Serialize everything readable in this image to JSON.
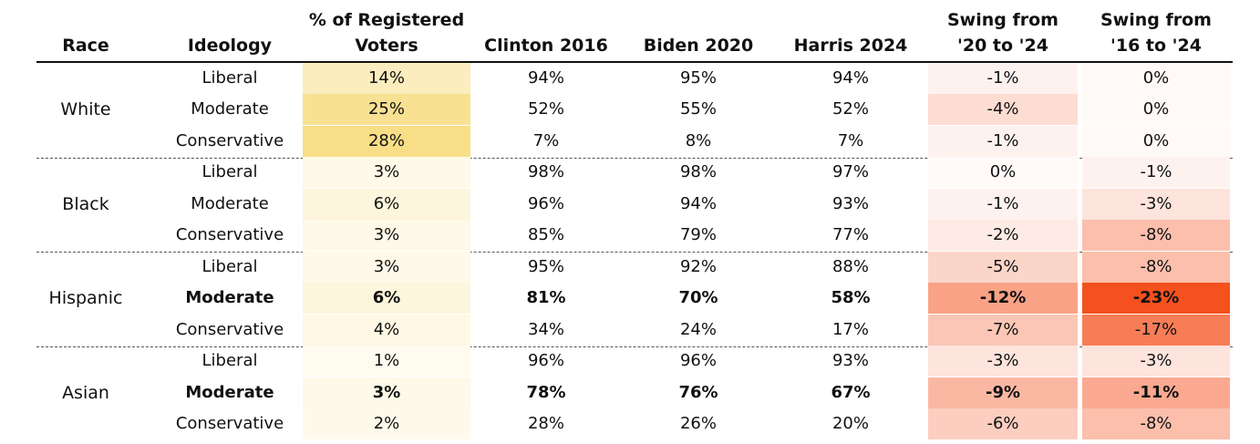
{
  "chart_data": {
    "type": "table",
    "columns": [
      "Race",
      "Ideology",
      "% of Registered Voters",
      "Clinton 2016",
      "Biden 2020",
      "Harris 2024",
      "Swing from '20 to '24",
      "Swing from '16 to '24"
    ],
    "header_lines": [
      [
        "Race"
      ],
      [
        "Ideology"
      ],
      [
        "% of Registered",
        "Voters"
      ],
      [
        "Clinton 2016"
      ],
      [
        "Biden 2020"
      ],
      [
        "Harris 2024"
      ],
      [
        "Swing from",
        "'20 to '24"
      ],
      [
        "Swing from",
        "'16 to '24"
      ]
    ],
    "groups": [
      {
        "race": "White",
        "rows": [
          {
            "ideology": "Liberal",
            "registered": "14%",
            "clinton_2016": "94%",
            "biden_2020": "95%",
            "harris_2024": "94%",
            "swing_20_24": "-1%",
            "swing_16_24": "0%",
            "bold": false
          },
          {
            "ideology": "Moderate",
            "registered": "25%",
            "clinton_2016": "52%",
            "biden_2020": "55%",
            "harris_2024": "52%",
            "swing_20_24": "-4%",
            "swing_16_24": "0%",
            "bold": false
          },
          {
            "ideology": "Conservative",
            "registered": "28%",
            "clinton_2016": "7%",
            "biden_2020": "8%",
            "harris_2024": "7%",
            "swing_20_24": "-1%",
            "swing_16_24": "0%",
            "bold": false
          }
        ]
      },
      {
        "race": "Black",
        "rows": [
          {
            "ideology": "Liberal",
            "registered": "3%",
            "clinton_2016": "98%",
            "biden_2020": "98%",
            "harris_2024": "97%",
            "swing_20_24": "0%",
            "swing_16_24": "-1%",
            "bold": false
          },
          {
            "ideology": "Moderate",
            "registered": "6%",
            "clinton_2016": "96%",
            "biden_2020": "94%",
            "harris_2024": "93%",
            "swing_20_24": "-1%",
            "swing_16_24": "-3%",
            "bold": false
          },
          {
            "ideology": "Conservative",
            "registered": "3%",
            "clinton_2016": "85%",
            "biden_2020": "79%",
            "harris_2024": "77%",
            "swing_20_24": "-2%",
            "swing_16_24": "-8%",
            "bold": false
          }
        ]
      },
      {
        "race": "Hispanic",
        "rows": [
          {
            "ideology": "Liberal",
            "registered": "3%",
            "clinton_2016": "95%",
            "biden_2020": "92%",
            "harris_2024": "88%",
            "swing_20_24": "-5%",
            "swing_16_24": "-8%",
            "bold": false
          },
          {
            "ideology": "Moderate",
            "registered": "6%",
            "clinton_2016": "81%",
            "biden_2020": "70%",
            "harris_2024": "58%",
            "swing_20_24": "-12%",
            "swing_16_24": "-23%",
            "bold": true
          },
          {
            "ideology": "Conservative",
            "registered": "4%",
            "clinton_2016": "34%",
            "biden_2020": "24%",
            "harris_2024": "17%",
            "swing_20_24": "-7%",
            "swing_16_24": "-17%",
            "bold": false
          }
        ]
      },
      {
        "race": "Asian",
        "rows": [
          {
            "ideology": "Liberal",
            "registered": "1%",
            "clinton_2016": "96%",
            "biden_2020": "96%",
            "harris_2024": "93%",
            "swing_20_24": "-3%",
            "swing_16_24": "-3%",
            "bold": false
          },
          {
            "ideology": "Moderate",
            "registered": "3%",
            "clinton_2016": "78%",
            "biden_2020": "76%",
            "harris_2024": "67%",
            "swing_20_24": "-9%",
            "swing_16_24": "-11%",
            "bold": true
          },
          {
            "ideology": "Conservative",
            "registered": "2%",
            "clinton_2016": "28%",
            "biden_2020": "26%",
            "harris_2024": "20%",
            "swing_20_24": "-6%",
            "swing_16_24": "-8%",
            "bold": false
          }
        ]
      }
    ],
    "heat_colors": {
      "registered_max": "#f7d66a",
      "swing_max": "#f4511e"
    }
  }
}
